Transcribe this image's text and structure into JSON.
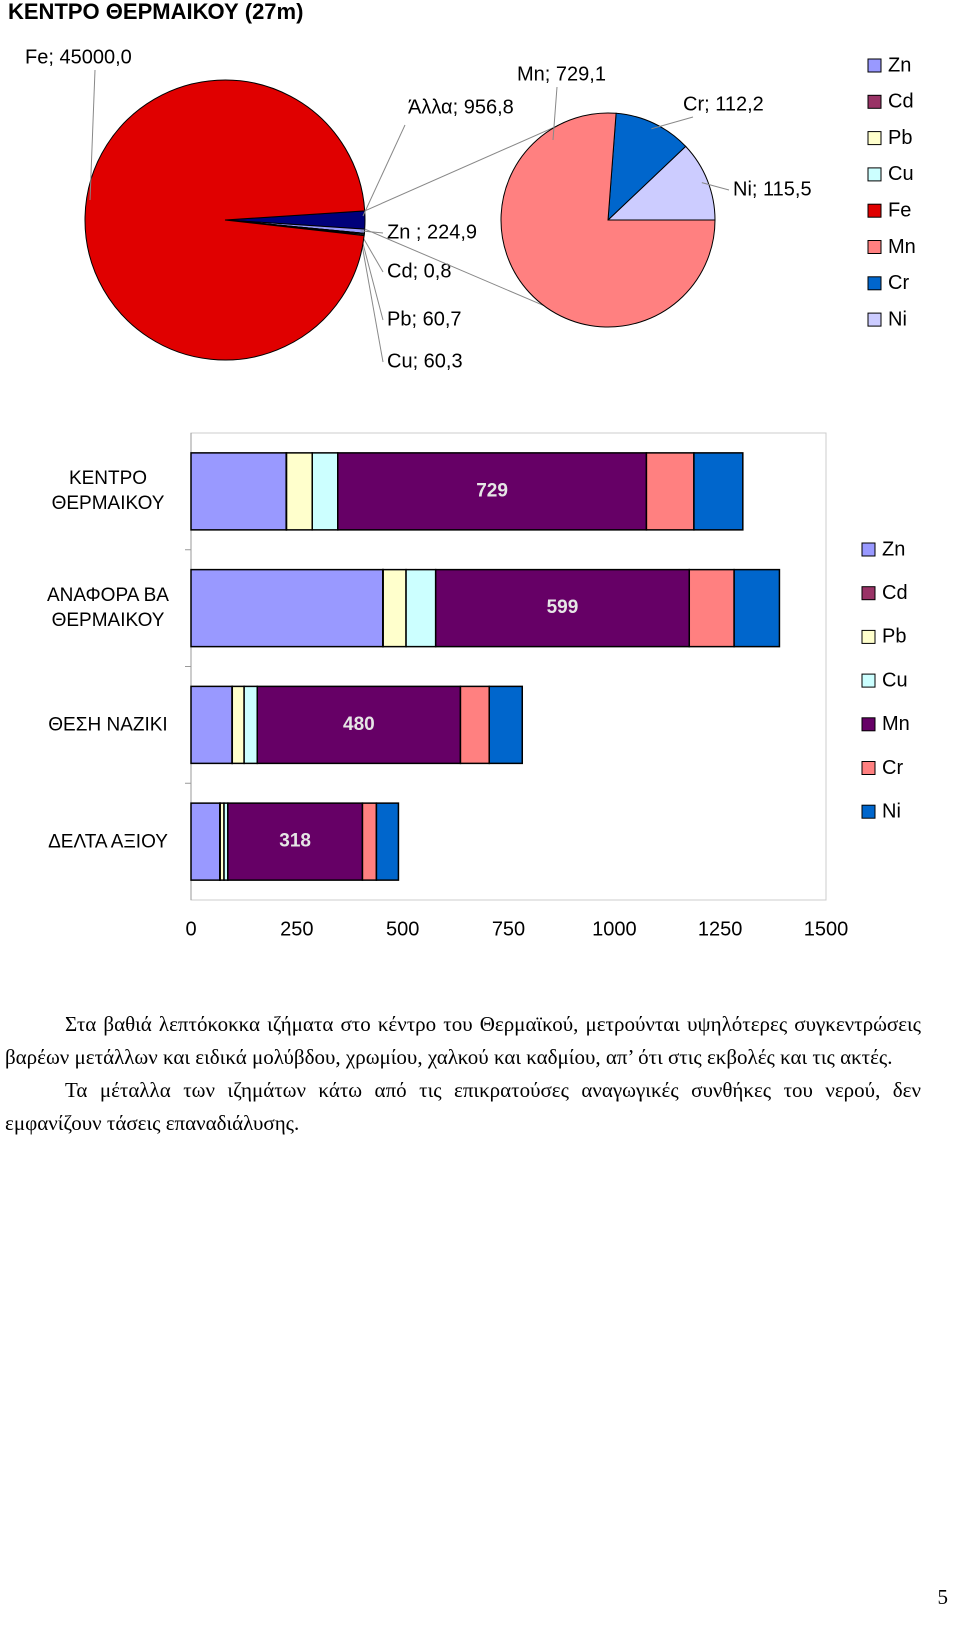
{
  "chart_data": [
    {
      "type": "pie-of-pie",
      "title": "ΚΕΝΤΡΟ ΘΕΡΜΑΙΚΟΥ (27m)",
      "categories": [
        "Zn",
        "Cd",
        "Pb",
        "Cu",
        "Fe"
      ],
      "values": [
        224.9,
        0.8,
        60.7,
        60.3,
        45000
      ],
      "value_labels": [
        "Zn ; 224,9",
        "Cd; 0,8",
        "Pb; 60,7",
        "Cu; 60,3",
        "Fe; 45000,0"
      ],
      "colors": [
        "#9999ff",
        "#993366",
        "#ffffcc",
        "#ccffff",
        "#e00000"
      ],
      "other": {
        "value": 956.8,
        "value_label": "Άλλα; 956,8",
        "color": "#00007a"
      },
      "secondary": {
        "categories": [
          "Mn",
          "Cr",
          "Ni"
        ],
        "values": [
          729.1,
          112.2,
          115.5
        ],
        "value_labels": [
          "Mn; 729,1",
          "Cr; 112,2",
          "Ni; 115,5"
        ],
        "colors": [
          "#ff8080",
          "#0066cc",
          "#ccccff"
        ]
      },
      "legend": "right"
    },
    {
      "type": "stacked-bar-horizontal",
      "categories": [
        "ΚΕΝΤΡΟ ΘΕΡΜΑΙΚΟΥ",
        "ΑΝΑΦΟΡΑ ΒΑ ΘΕΡΜΑΙΚΟΥ",
        "ΘΕΣΗ ΝΑΖΙΚΙ",
        "ΔΕΛΤΑ ΑΞΙΟΥ"
      ],
      "series": [
        {
          "name": "Zn",
          "color": "#9999ff",
          "values": [
            224.9,
            453,
            97,
            68
          ]
        },
        {
          "name": "Cd",
          "color": "#993366",
          "values": [
            0.8,
            1,
            0.5,
            1
          ]
        },
        {
          "name": "Pb",
          "color": "#ffffcc",
          "values": [
            60.7,
            54,
            28,
            9
          ]
        },
        {
          "name": "Cu",
          "color": "#ccffff",
          "values": [
            60.3,
            70,
            31,
            9
          ]
        },
        {
          "name": "Mn",
          "color": "#660066",
          "values": [
            729.1,
            599,
            480,
            318
          ],
          "value_labels": [
            "729",
            "599",
            "480",
            "318"
          ]
        },
        {
          "name": "Cr",
          "color": "#ff8080",
          "values": [
            112.2,
            106,
            68,
            33
          ]
        },
        {
          "name": "Ni",
          "color": "#0066cc",
          "values": [
            115.5,
            107,
            78,
            52
          ]
        }
      ],
      "xlim": [
        0,
        1500
      ],
      "xticks": [
        0,
        250,
        500,
        750,
        1000,
        1250,
        1500
      ],
      "legend": "right"
    }
  ],
  "text": {
    "paragraphs": [
      "Στα βαθιά λεπτόκοκκα ιζήματα στο κέντρο του Θερμαϊκού, μετρούνται υψηλότερες συγκεντρώσεις βαρέων μετάλλων και ειδικά μολύβδου, χρωμίου, χαλκού και καδμίου, απ’ ότι στις εκβολές και τις ακτές.",
      "Τα μέταλλα των ιζημάτων κάτω από τις επικρατούσες αναγωγικές συνθήκες του νερού, δεν εμφανίζουν τάσεις επαναδιάλυσης."
    ],
    "page_number": "5"
  }
}
